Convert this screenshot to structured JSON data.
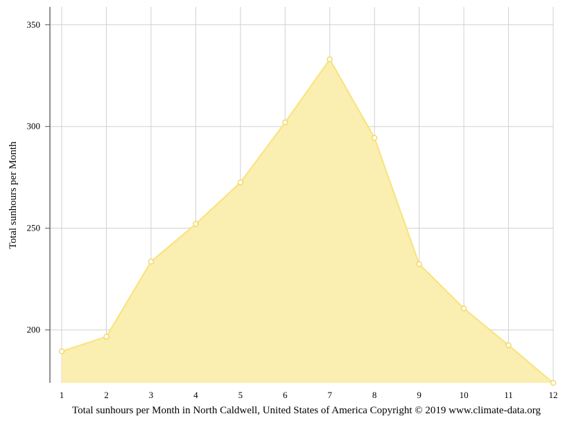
{
  "chart_data": {
    "type": "area",
    "x": [
      1,
      2,
      3,
      4,
      5,
      6,
      7,
      8,
      9,
      10,
      11,
      12
    ],
    "series": [
      {
        "values": [
          189.5,
          196.7,
          233.6,
          252.1,
          272.5,
          302.0,
          333.0,
          294.4,
          232.4,
          210.6,
          192.5,
          174.0
        ]
      }
    ],
    "xlabel": "Total sunhours per Month in North Caldwell, United States of America Copyright © 2019 www.climate-data.org",
    "ylabel": "Total sunhours per Month",
    "xlim": [
      1,
      12
    ],
    "ylim": [
      174,
      354
    ],
    "yticks": [
      200,
      250,
      300,
      350
    ],
    "xticks": [
      1,
      2,
      3,
      4,
      5,
      6,
      7,
      8,
      9,
      10,
      11,
      12
    ],
    "grid": true,
    "colors": {
      "fill": "#faeeb0",
      "line": "#f9e37a",
      "marker_fill": "#ffffff",
      "marker_stroke": "#f1d35a"
    }
  }
}
